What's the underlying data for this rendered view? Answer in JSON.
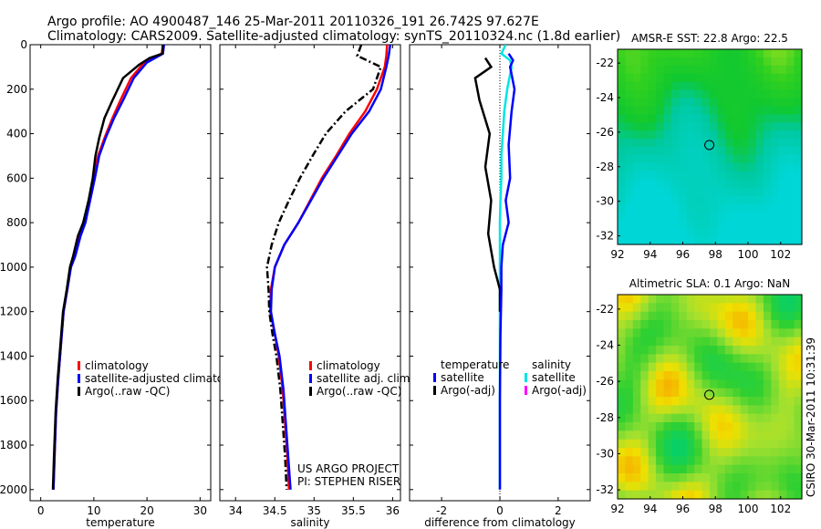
{
  "header": {
    "line1": "Argo profile: AO 4900487_146 25-Mar-2011 20110326_191 26.742S 97.627E",
    "line2": "Climatology: CARS2009. Satellite-adjusted climatology: synTS_20110324.nc (1.8d earlier)"
  },
  "credit": "CSIRO 30-Mar-2011 10:31:39",
  "project_note": [
    "US ARGO PROJECT",
    "PI: STEPHEN RISER"
  ],
  "colors": {
    "climatology": "#ff0000",
    "satellite": "#0000ff",
    "argo": "#000000",
    "satellite_salinity": "#00e5e5",
    "argo_salinity_adj": "#ff00ff"
  },
  "chart_data": [
    {
      "type": "line",
      "xlabel": "temperature",
      "ylabel": "",
      "xlim": [
        -2,
        32
      ],
      "ylim": [
        2050,
        0
      ],
      "xticks": [
        0,
        10,
        20,
        30
      ],
      "yticks": [
        0,
        200,
        400,
        600,
        800,
        1000,
        1200,
        1400,
        1600,
        1800,
        2000
      ],
      "legend": [
        "climatology",
        "satellite-adjusted climatology",
        "Argo(..raw -QC)"
      ],
      "series": [
        {
          "name": "climatology",
          "color": "#ff0000",
          "style": "solid",
          "x": [
            23.0,
            22.8,
            21.0,
            19.5,
            17.0,
            15.0,
            13.5,
            12.0,
            10.8,
            10.0,
            9.2,
            8.3,
            7.4,
            6.4,
            5.6,
            5.0,
            4.3,
            3.8,
            3.3,
            2.9,
            2.6,
            2.4
          ],
          "y": [
            0,
            40,
            60,
            80,
            150,
            250,
            330,
            420,
            500,
            600,
            700,
            800,
            860,
            950,
            1000,
            1100,
            1200,
            1350,
            1500,
            1650,
            1850,
            2000
          ]
        },
        {
          "name": "satellite-adjusted climatology",
          "color": "#0000ff",
          "style": "solid",
          "x": [
            23.2,
            23.0,
            21.5,
            20.0,
            17.5,
            15.5,
            13.8,
            12.2,
            11.0,
            10.2,
            9.3,
            8.4,
            7.5,
            6.5,
            5.7,
            5.0,
            4.3,
            3.8,
            3.3,
            2.9,
            2.6,
            2.4
          ],
          "y": [
            0,
            40,
            60,
            80,
            150,
            250,
            330,
            420,
            500,
            600,
            700,
            800,
            860,
            950,
            1000,
            1100,
            1200,
            1350,
            1500,
            1650,
            1850,
            2000
          ]
        },
        {
          "name": "Argo(..raw -QC)",
          "color": "#000000",
          "style": "solid",
          "x": [
            23.0,
            22.9,
            20.5,
            18.5,
            15.5,
            13.5,
            12.0,
            11.0,
            10.3,
            9.8,
            9.0,
            8.0,
            7.0,
            6.1,
            5.5,
            4.9,
            4.2,
            3.7,
            3.2,
            2.8,
            2.5,
            2.3
          ],
          "y": [
            0,
            40,
            60,
            90,
            150,
            250,
            330,
            420,
            500,
            600,
            700,
            800,
            860,
            950,
            1000,
            1100,
            1200,
            1350,
            1500,
            1650,
            1850,
            2000
          ]
        }
      ]
    },
    {
      "type": "line",
      "xlabel": "salinity",
      "ylabel": "",
      "xlim": [
        33.8,
        36.1
      ],
      "ylim": [
        2050,
        0
      ],
      "xticks": [
        34,
        34.5,
        35,
        35.5,
        36
      ],
      "yticks": [
        0,
        200,
        400,
        600,
        800,
        1000,
        1200,
        1400,
        1600,
        1800,
        2000
      ],
      "legend": [
        "climatology",
        "satellite adj. clim.",
        "Argo(..raw -QC)"
      ],
      "series": [
        {
          "name": "climatology",
          "color": "#ff0000",
          "style": "solid",
          "x": [
            35.93,
            35.92,
            35.9,
            35.8,
            35.65,
            35.45,
            35.28,
            35.1,
            34.95,
            34.8,
            34.62,
            34.5,
            34.45,
            34.44,
            34.5,
            34.55,
            34.6,
            34.63,
            34.66,
            34.68
          ],
          "y": [
            0,
            50,
            100,
            200,
            300,
            400,
            500,
            600,
            700,
            800,
            900,
            1000,
            1100,
            1200,
            1300,
            1400,
            1550,
            1700,
            1850,
            2000
          ]
        },
        {
          "name": "satellite adj. clim.",
          "color": "#0000ff",
          "style": "solid",
          "x": [
            35.97,
            35.95,
            35.92,
            35.85,
            35.7,
            35.48,
            35.3,
            35.12,
            34.96,
            34.8,
            34.62,
            34.5,
            34.46,
            34.45,
            34.5,
            34.56,
            34.61,
            34.64,
            34.67,
            34.7
          ],
          "y": [
            0,
            50,
            100,
            200,
            300,
            400,
            500,
            600,
            700,
            800,
            900,
            1000,
            1100,
            1200,
            1300,
            1400,
            1550,
            1700,
            1850,
            2000
          ]
        },
        {
          "name": "Argo(..raw -QC)",
          "color": "#000000",
          "style": "dashdot",
          "x": [
            35.6,
            35.55,
            35.85,
            35.75,
            35.4,
            35.15,
            34.98,
            34.82,
            34.68,
            34.55,
            34.46,
            34.4,
            34.42,
            34.43,
            34.47,
            34.52,
            34.57,
            34.6,
            34.63,
            34.65
          ],
          "y": [
            0,
            50,
            100,
            200,
            300,
            400,
            500,
            600,
            700,
            800,
            900,
            1000,
            1100,
            1200,
            1300,
            1400,
            1550,
            1700,
            1850,
            2000
          ]
        }
      ]
    },
    {
      "type": "line",
      "xlabel": "difference from climatology",
      "ylabel": "",
      "xlim": [
        -3.1,
        3.1
      ],
      "ylim": [
        2050,
        0
      ],
      "xticks": [
        -2,
        0,
        2
      ],
      "yticks": [
        0,
        200,
        400,
        600,
        800,
        1000,
        1200,
        1400,
        1600,
        1800,
        2000
      ],
      "legend_groups": [
        {
          "heading": "temperature",
          "entries": [
            "satellite",
            "Argo(-adj)"
          ]
        },
        {
          "heading": "salinity",
          "entries": [
            "satellite",
            "Argo(-adj)"
          ]
        }
      ],
      "series": [
        {
          "name": "satellite",
          "color": "#00e5e5",
          "style": "solid",
          "x": [
            0.2,
            0.05,
            0.35,
            0.4,
            0.25,
            0.15,
            0.1,
            0.05,
            0.05,
            0.02,
            0.0,
            0.0,
            0.0,
            0.0,
            0.0,
            0.0,
            0.0,
            0.0,
            0.0,
            0.0
          ],
          "y": [
            0,
            40,
            70,
            100,
            200,
            300,
            400,
            500,
            600,
            700,
            800,
            900,
            1000,
            1100,
            1200,
            1400,
            1600,
            1800,
            1900,
            2000
          ]
        },
        {
          "name": "Argo(-adj)",
          "color": "#000000",
          "style": "solid",
          "x": [
            -0.5,
            -0.3,
            -0.85,
            -0.7,
            -0.35,
            -0.5,
            -0.3,
            -0.4,
            -0.2,
            -0.1,
            0.0,
            0.0,
            0.0
          ],
          "y": [
            60,
            100,
            150,
            250,
            400,
            550,
            700,
            850,
            1000,
            1050,
            1100,
            1150,
            1200
          ]
        },
        {
          "name": "satellite",
          "color": "#0000ff",
          "style": "solid",
          "x": [
            0.3,
            0.45,
            0.35,
            0.5,
            0.4,
            0.3,
            0.35,
            0.2,
            0.3,
            0.1,
            0.05,
            0.05,
            0.02,
            0.0,
            0.0
          ],
          "y": [
            40,
            70,
            100,
            200,
            300,
            450,
            600,
            700,
            800,
            900,
            1000,
            1100,
            1300,
            1600,
            2000
          ]
        }
      ],
      "zero_line": 0
    },
    {
      "type": "heatmap",
      "title": "AMSR-E SST: 22.8 Argo: 22.5",
      "xlim": [
        92,
        103.3
      ],
      "ylim": [
        -32.5,
        -21.2
      ],
      "xticks": [
        92,
        94,
        96,
        98,
        100,
        102
      ],
      "yticks": [
        -22,
        -24,
        -26,
        -28,
        -30,
        -32
      ],
      "marker": {
        "x": 97.627,
        "y": -26.742
      }
    },
    {
      "type": "heatmap",
      "title": "Altimetric SLA: 0.1 Argo: NaN",
      "xlim": [
        92,
        103.3
      ],
      "ylim": [
        -32.5,
        -21.2
      ],
      "xticks": [
        92,
        94,
        96,
        98,
        100,
        102
      ],
      "yticks": [
        -22,
        -24,
        -26,
        -28,
        -30,
        -32
      ],
      "marker": {
        "x": 97.627,
        "y": -26.742
      }
    }
  ]
}
